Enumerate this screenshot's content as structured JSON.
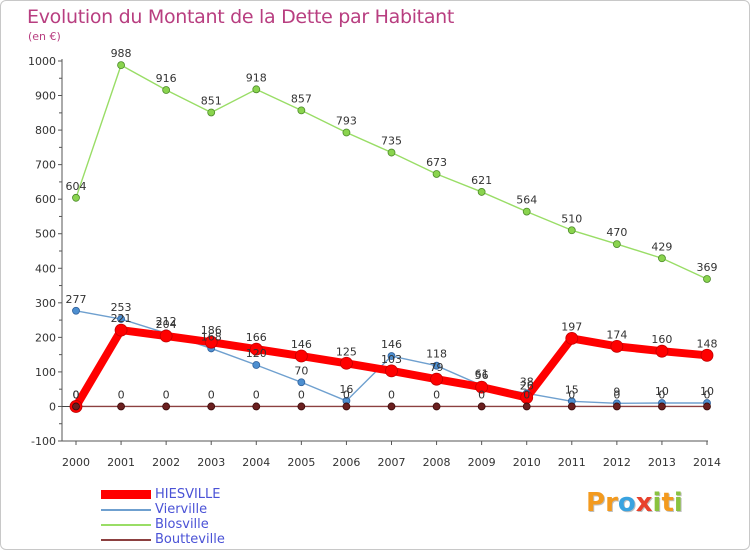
{
  "header": {
    "title": "Evolution du Montant de la Dette par Habitant",
    "subtitle": "(en €)"
  },
  "logo": {
    "text": "Proxiti",
    "letters": [
      "P",
      "r",
      "o",
      "x",
      "i",
      "t",
      "i"
    ],
    "colors": [
      "#f39a1e",
      "#f39a1e",
      "#3aa3e0",
      "#e8412c",
      "#8ac33f",
      "#f39a1e",
      "#8ac33f"
    ]
  },
  "chart_data": {
    "type": "line",
    "title": "Evolution du Montant de la Dette par Habitant",
    "ylabel": "(en €)",
    "xlabel": "",
    "x": [
      "2000",
      "2001",
      "2002",
      "2003",
      "2004",
      "2005",
      "2006",
      "2007",
      "2008",
      "2009",
      "2010",
      "2011",
      "2012",
      "2013",
      "2014"
    ],
    "ylim": [
      -100,
      1000
    ],
    "yticks": [
      "-100",
      "0",
      "100",
      "200",
      "300",
      "400",
      "500",
      "600",
      "700",
      "800",
      "900",
      "1000"
    ],
    "grid": false,
    "legend_position": "bottom-left",
    "series": [
      {
        "name": "HIESVILLE",
        "color": "#ff0000",
        "values": [
          0,
          221,
          204,
          186,
          166,
          146,
          125,
          103,
          79,
          56,
          26,
          197,
          174,
          160,
          148
        ],
        "labels": [
          "0",
          "221",
          "204",
          "186",
          "166",
          "146",
          "125",
          "103",
          "79",
          "56",
          "26",
          "197",
          "174",
          "160",
          "148"
        ]
      },
      {
        "name": "Vierville",
        "color": "#6fa0cf",
        "values": [
          277,
          253,
          212,
          168,
          120,
          70,
          16,
          146,
          118,
          61,
          38,
          15,
          9,
          10,
          10
        ],
        "labels": [
          "277",
          "253",
          "212",
          "168",
          "120",
          "70",
          "16",
          "146",
          "118",
          "61",
          "38",
          "15",
          "9",
          "10",
          "10"
        ]
      },
      {
        "name": "Blosville",
        "color": "#99dd66",
        "values": [
          604,
          988,
          916,
          851,
          918,
          857,
          793,
          735,
          673,
          621,
          564,
          510,
          470,
          429,
          369
        ],
        "labels": [
          "604",
          "988",
          "916",
          "851",
          "918",
          "857",
          "793",
          "735",
          "673",
          "621",
          "564",
          "510",
          "470",
          "429",
          "369"
        ]
      },
      {
        "name": "Boutteville",
        "color": "#8c4040",
        "values": [
          0,
          0,
          0,
          0,
          0,
          0,
          0,
          0,
          0,
          0,
          0,
          0,
          0,
          0,
          0
        ],
        "labels": [
          "0",
          "0",
          "0",
          "0",
          "0",
          "0",
          "0",
          "0",
          "0",
          "0",
          "0",
          "0",
          "0",
          "0",
          "0"
        ]
      }
    ]
  }
}
